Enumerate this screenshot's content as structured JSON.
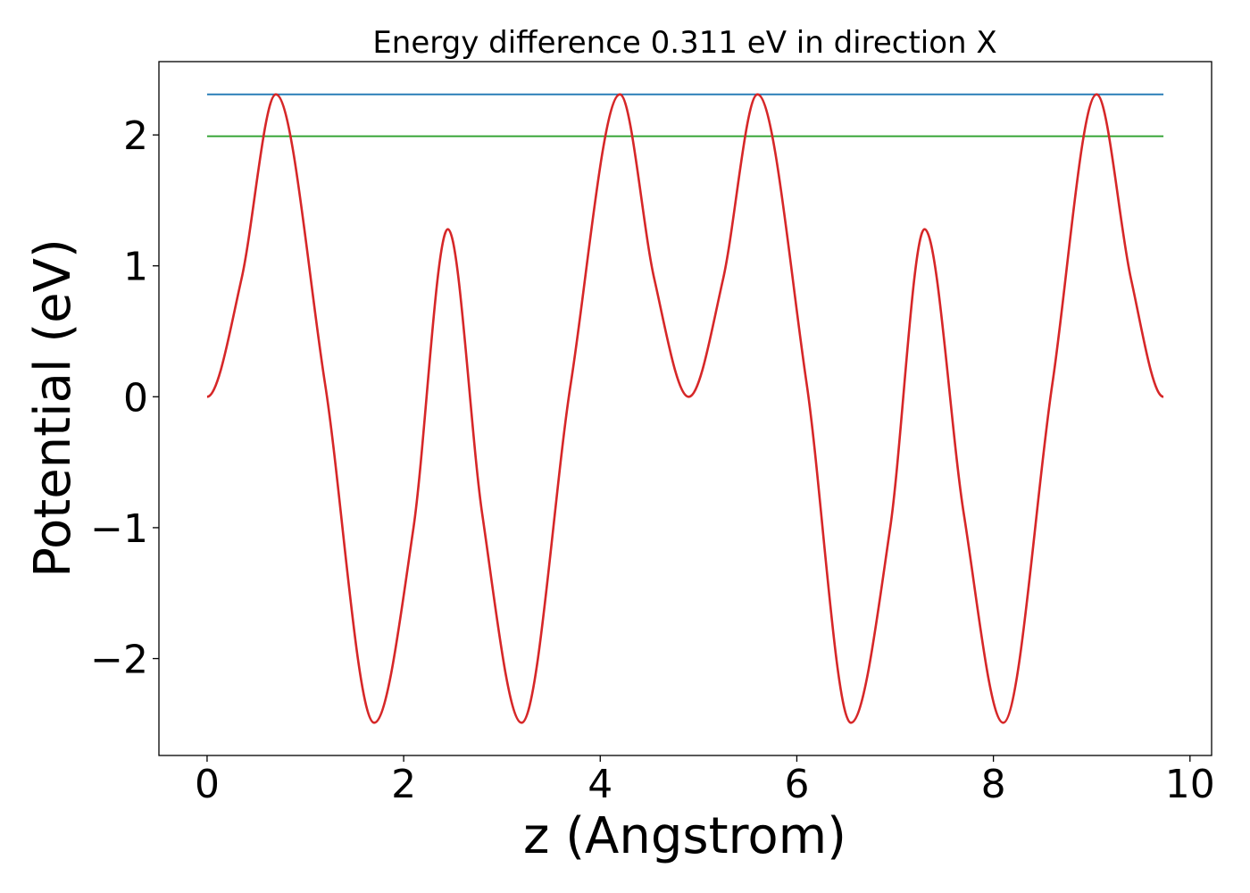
{
  "chart_data": {
    "type": "line",
    "title": "Energy difference 0.311 eV in direction X",
    "xlabel": "z (Angstrom)",
    "ylabel": "Potential (eV)",
    "xlim": [
      -0.49,
      10.22
    ],
    "ylim": [
      -2.74,
      2.56
    ],
    "xticks": [
      0,
      2,
      4,
      6,
      8,
      10
    ],
    "xtick_labels": [
      "0",
      "2",
      "4",
      "6",
      "8",
      "10"
    ],
    "yticks": [
      -2,
      -1,
      0,
      1,
      2
    ],
    "ytick_labels": [
      "−2",
      "−1",
      "0",
      "1",
      "2"
    ],
    "grid": false,
    "legend": "none",
    "series": [
      {
        "color": "#1f77b4",
        "x": [
          0,
          9.73
        ],
        "y": [
          2.31,
          2.31
        ]
      },
      {
        "color": "#2ca02c",
        "x": [
          0,
          9.73
        ],
        "y": [
          1.99,
          1.99
        ]
      },
      {
        "color": "#d62728",
        "x": [
          0.0,
          0.35,
          0.7,
          1.2,
          1.7,
          2.1,
          2.45,
          2.8,
          3.2,
          3.7,
          4.2,
          4.55,
          4.9,
          5.25,
          5.6,
          6.1,
          6.55,
          6.95,
          7.3,
          7.7,
          8.1,
          8.6,
          9.05,
          9.4,
          9.73
        ],
        "y": [
          0.0,
          0.9,
          2.31,
          0.1,
          -2.49,
          -1.0,
          1.28,
          -0.9,
          -2.49,
          0.1,
          2.31,
          0.9,
          0.0,
          0.9,
          2.31,
          0.1,
          -2.49,
          -1.0,
          1.28,
          -0.9,
          -2.49,
          0.1,
          2.31,
          0.9,
          0.0
        ]
      }
    ]
  }
}
